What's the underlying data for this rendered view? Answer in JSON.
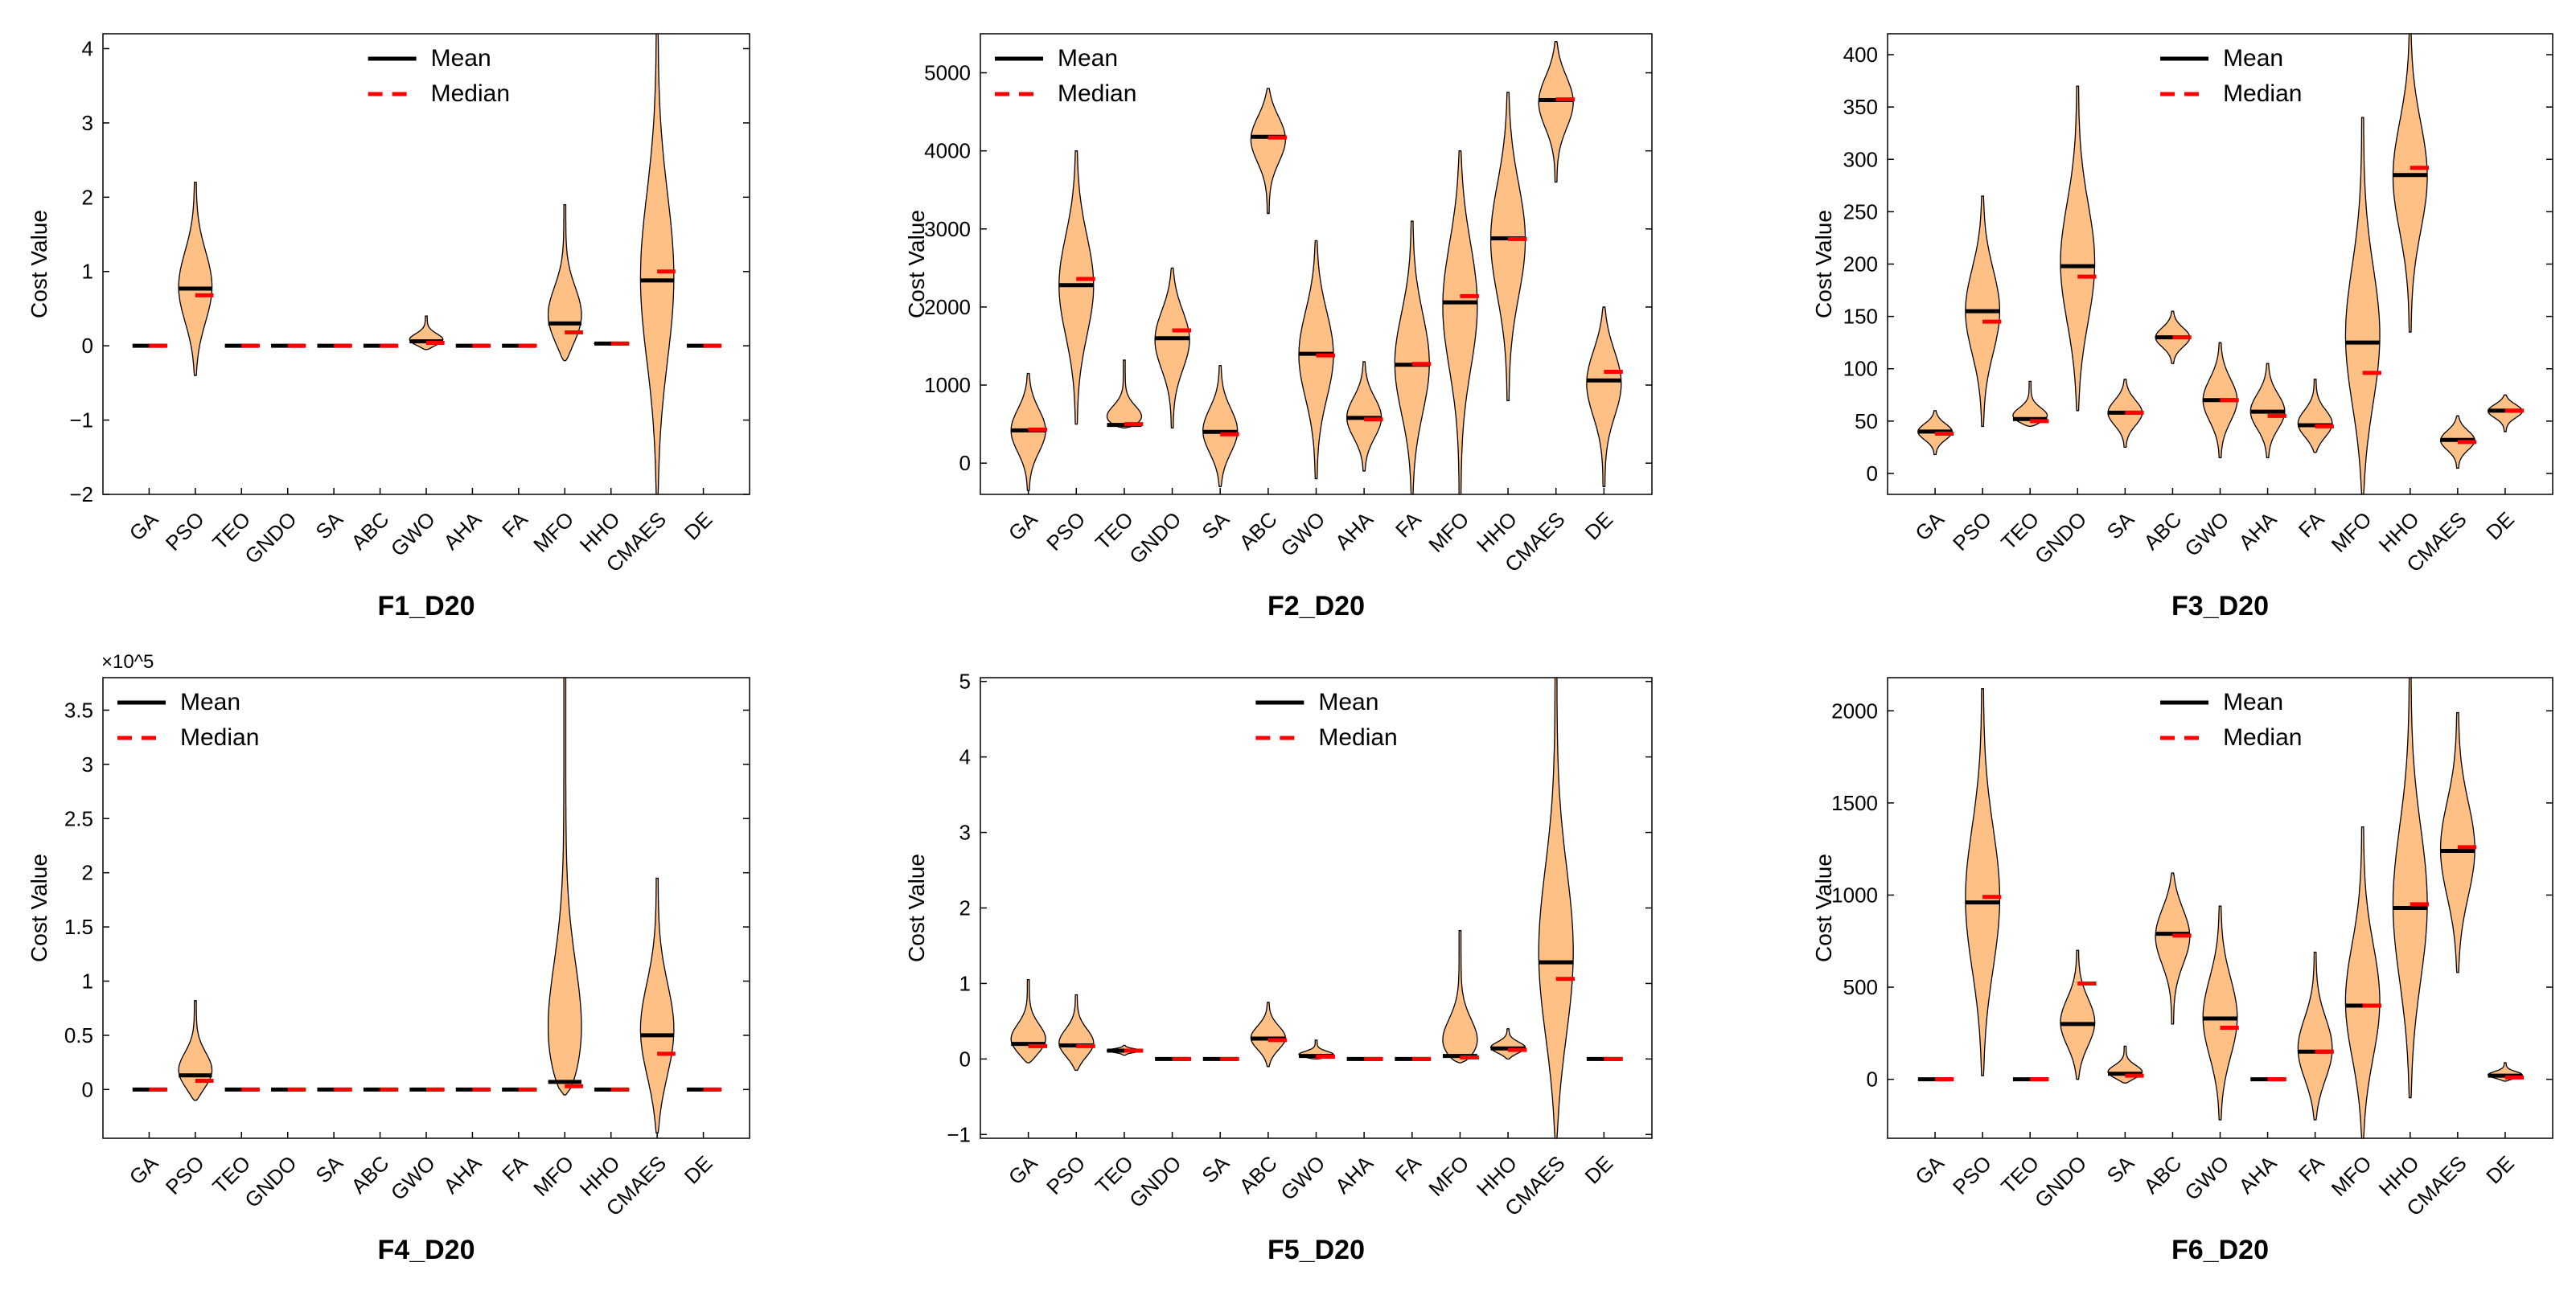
{
  "colors": {
    "violin_fill": "#FFC085",
    "violin_edge": "#000000",
    "mean": "#000000",
    "median": "#FF0000",
    "axes": "#000000"
  },
  "legend": {
    "mean_label": "Mean",
    "median_label": "Median"
  },
  "chart_data": [
    {
      "type": "violin",
      "title": "F1_D20",
      "ylabel": "Cost Value",
      "exponent_label": "",
      "ylim": [
        -2,
        4.2
      ],
      "yticks": [
        -2,
        -1,
        0,
        1,
        2,
        3,
        4
      ],
      "ytick_labels": [
        "−2",
        "−1",
        "0",
        "1",
        "2",
        "3",
        "4"
      ],
      "legend_position": "top-center",
      "categories": [
        "GA",
        "PSO",
        "TEO",
        "GNDO",
        "SA",
        "ABC",
        "GWO",
        "AHA",
        "FA",
        "MFO",
        "HHO",
        "CMAES",
        "DE"
      ],
      "series": [
        {
          "name": "GA",
          "min": 0,
          "max": 0,
          "mean": 0,
          "median": 0
        },
        {
          "name": "PSO",
          "min": -0.4,
          "max": 2.2,
          "mean": 0.77,
          "median": 0.68
        },
        {
          "name": "TEO",
          "min": 0,
          "max": 0,
          "mean": 0,
          "median": 0
        },
        {
          "name": "GNDO",
          "min": 0,
          "max": 0,
          "mean": 0,
          "median": 0
        },
        {
          "name": "SA",
          "min": 0,
          "max": 0,
          "mean": 0,
          "median": 0
        },
        {
          "name": "ABC",
          "min": 0,
          "max": 0,
          "mean": 0,
          "median": 0
        },
        {
          "name": "GWO",
          "min": -0.05,
          "max": 0.4,
          "mean": 0.06,
          "median": 0.04
        },
        {
          "name": "AHA",
          "min": 0,
          "max": 0,
          "mean": 0,
          "median": 0
        },
        {
          "name": "FA",
          "min": 0,
          "max": 0,
          "mean": 0,
          "median": 0
        },
        {
          "name": "MFO",
          "min": -0.2,
          "max": 1.9,
          "mean": 0.3,
          "median": 0.18
        },
        {
          "name": "HHO",
          "min": 0.01,
          "max": 0.05,
          "mean": 0.03,
          "median": 0.03
        },
        {
          "name": "CMAES",
          "min": -2,
          "max": 4.2,
          "mean": 0.88,
          "median": 1.0
        },
        {
          "name": "DE",
          "min": 0,
          "max": 0,
          "mean": 0,
          "median": 0
        }
      ]
    },
    {
      "type": "violin",
      "title": "F2_D20",
      "ylabel": "Cost Value",
      "exponent_label": "",
      "ylim": [
        -400,
        5500
      ],
      "yticks": [
        0,
        1000,
        2000,
        3000,
        4000,
        5000
      ],
      "ytick_labels": [
        "0",
        "1000",
        "2000",
        "3000",
        "4000",
        "5000"
      ],
      "legend_position": "top-left",
      "categories": [
        "GA",
        "PSO",
        "TEO",
        "GNDO",
        "SA",
        "ABC",
        "GWO",
        "AHA",
        "FA",
        "MFO",
        "HHO",
        "CMAES",
        "DE"
      ],
      "series": [
        {
          "name": "GA",
          "min": -350,
          "max": 1150,
          "mean": 420,
          "median": 430
        },
        {
          "name": "PSO",
          "min": 500,
          "max": 4000,
          "mean": 2280,
          "median": 2360
        },
        {
          "name": "TEO",
          "min": 450,
          "max": 1320,
          "mean": 490,
          "median": 500
        },
        {
          "name": "GNDO",
          "min": 450,
          "max": 2500,
          "mean": 1600,
          "median": 1700
        },
        {
          "name": "SA",
          "min": -300,
          "max": 1250,
          "mean": 400,
          "median": 370
        },
        {
          "name": "ABC",
          "min": 3200,
          "max": 4800,
          "mean": 4180,
          "median": 4170
        },
        {
          "name": "GWO",
          "min": -200,
          "max": 2850,
          "mean": 1400,
          "median": 1380
        },
        {
          "name": "AHA",
          "min": -100,
          "max": 1300,
          "mean": 580,
          "median": 560
        },
        {
          "name": "FA",
          "min": -400,
          "max": 3100,
          "mean": 1260,
          "median": 1270
        },
        {
          "name": "MFO",
          "min": -400,
          "max": 4000,
          "mean": 2060,
          "median": 2140
        },
        {
          "name": "HHO",
          "min": 800,
          "max": 4750,
          "mean": 2880,
          "median": 2870
        },
        {
          "name": "CMAES",
          "min": 3600,
          "max": 5400,
          "mean": 4650,
          "median": 4660
        },
        {
          "name": "DE",
          "min": -300,
          "max": 2000,
          "mean": 1060,
          "median": 1170
        }
      ]
    },
    {
      "type": "violin",
      "title": "F3_D20",
      "ylabel": "Cost Value",
      "exponent_label": "",
      "ylim": [
        -20,
        420
      ],
      "yticks": [
        0,
        50,
        100,
        150,
        200,
        250,
        300,
        350,
        400
      ],
      "ytick_labels": [
        "0",
        "50",
        "100",
        "150",
        "200",
        "250",
        "300",
        "350",
        "400"
      ],
      "legend_position": "top-center",
      "categories": [
        "GA",
        "PSO",
        "TEO",
        "GNDO",
        "SA",
        "ABC",
        "GWO",
        "AHA",
        "FA",
        "MFO",
        "HHO",
        "CMAES",
        "DE"
      ],
      "series": [
        {
          "name": "GA",
          "min": 18,
          "max": 60,
          "mean": 40,
          "median": 38
        },
        {
          "name": "PSO",
          "min": 45,
          "max": 265,
          "mean": 155,
          "median": 145
        },
        {
          "name": "TEO",
          "min": 45,
          "max": 88,
          "mean": 52,
          "median": 50
        },
        {
          "name": "GNDO",
          "min": 60,
          "max": 370,
          "mean": 198,
          "median": 188
        },
        {
          "name": "SA",
          "min": 25,
          "max": 90,
          "mean": 58,
          "median": 58
        },
        {
          "name": "ABC",
          "min": 105,
          "max": 155,
          "mean": 130,
          "median": 130
        },
        {
          "name": "GWO",
          "min": 15,
          "max": 125,
          "mean": 70,
          "median": 70
        },
        {
          "name": "AHA",
          "min": 15,
          "max": 105,
          "mean": 59,
          "median": 55
        },
        {
          "name": "FA",
          "min": 20,
          "max": 90,
          "mean": 46,
          "median": 45
        },
        {
          "name": "MFO",
          "min": -20,
          "max": 340,
          "mean": 125,
          "median": 96
        },
        {
          "name": "HHO",
          "min": 135,
          "max": 420,
          "mean": 285,
          "median": 292
        },
        {
          "name": "CMAES",
          "min": 5,
          "max": 55,
          "mean": 32,
          "median": 30
        },
        {
          "name": "DE",
          "min": 40,
          "max": 75,
          "mean": 60,
          "median": 60
        }
      ]
    },
    {
      "type": "violin",
      "title": "F4_D20",
      "ylabel": "Cost Value",
      "exponent_label": "×10^5",
      "ylim": [
        -0.45,
        3.8
      ],
      "yticks": [
        0,
        0.5,
        1,
        1.5,
        2,
        2.5,
        3,
        3.5
      ],
      "ytick_labels": [
        "0",
        "0.5",
        "1",
        "1.5",
        "2",
        "2.5",
        "3",
        "3.5"
      ],
      "legend_position": "top-left",
      "categories": [
        "GA",
        "PSO",
        "TEO",
        "GNDO",
        "SA",
        "ABC",
        "GWO",
        "AHA",
        "FA",
        "MFO",
        "HHO",
        "CMAES",
        "DE"
      ],
      "series": [
        {
          "name": "GA",
          "min": 0,
          "max": 0,
          "mean": 0,
          "median": 0
        },
        {
          "name": "PSO",
          "min": -0.1,
          "max": 0.82,
          "mean": 0.13,
          "median": 0.08
        },
        {
          "name": "TEO",
          "min": 0,
          "max": 0,
          "mean": 0,
          "median": 0
        },
        {
          "name": "GNDO",
          "min": 0,
          "max": 0,
          "mean": 0,
          "median": 0
        },
        {
          "name": "SA",
          "min": 0,
          "max": 0,
          "mean": 0,
          "median": 0
        },
        {
          "name": "ABC",
          "min": 0,
          "max": 0,
          "mean": 0,
          "median": 0
        },
        {
          "name": "GWO",
          "min": 0,
          "max": 0,
          "mean": 0,
          "median": 0
        },
        {
          "name": "AHA",
          "min": 0,
          "max": 0,
          "mean": 0,
          "median": 0
        },
        {
          "name": "FA",
          "min": 0,
          "max": 0,
          "mean": 0,
          "median": 0
        },
        {
          "name": "MFO",
          "min": -0.05,
          "max": 3.8,
          "mean": 0.07,
          "median": 0.03
        },
        {
          "name": "HHO",
          "min": 0,
          "max": 0,
          "mean": 0,
          "median": 0
        },
        {
          "name": "CMAES",
          "min": -0.4,
          "max": 1.95,
          "mean": 0.5,
          "median": 0.33
        },
        {
          "name": "DE",
          "min": 0,
          "max": 0,
          "mean": 0,
          "median": 0
        }
      ]
    },
    {
      "type": "violin",
      "title": "F5_D20",
      "ylabel": "Cost Value",
      "exponent_label": "",
      "ylim": [
        -1.05,
        5.05
      ],
      "yticks": [
        -1,
        0,
        1,
        2,
        3,
        4,
        5
      ],
      "ytick_labels": [
        "−1",
        "0",
        "1",
        "2",
        "3",
        "4",
        "5"
      ],
      "legend_position": "top-center",
      "categories": [
        "GA",
        "PSO",
        "TEO",
        "GNDO",
        "SA",
        "ABC",
        "GWO",
        "AHA",
        "FA",
        "MFO",
        "HHO",
        "CMAES",
        "DE"
      ],
      "series": [
        {
          "name": "GA",
          "min": -0.05,
          "max": 1.05,
          "mean": 0.2,
          "median": 0.17
        },
        {
          "name": "PSO",
          "min": -0.15,
          "max": 0.85,
          "mean": 0.18,
          "median": 0.17
        },
        {
          "name": "TEO",
          "min": 0.05,
          "max": 0.18,
          "mean": 0.11,
          "median": 0.11
        },
        {
          "name": "GNDO",
          "min": 0,
          "max": 0,
          "mean": 0,
          "median": 0
        },
        {
          "name": "SA",
          "min": 0,
          "max": 0,
          "mean": 0,
          "median": 0
        },
        {
          "name": "ABC",
          "min": -0.1,
          "max": 0.75,
          "mean": 0.27,
          "median": 0.25
        },
        {
          "name": "GWO",
          "min": 0,
          "max": 0.25,
          "mean": 0.04,
          "median": 0.03
        },
        {
          "name": "AHA",
          "min": 0,
          "max": 0,
          "mean": 0,
          "median": 0
        },
        {
          "name": "FA",
          "min": 0,
          "max": 0,
          "mean": 0,
          "median": 0
        },
        {
          "name": "MFO",
          "min": -0.05,
          "max": 1.7,
          "mean": 0.04,
          "median": 0.02
        },
        {
          "name": "HHO",
          "min": 0,
          "max": 0.4,
          "mean": 0.14,
          "median": 0.12
        },
        {
          "name": "CMAES",
          "min": -1.05,
          "max": 5.05,
          "mean": 1.28,
          "median": 1.06
        },
        {
          "name": "DE",
          "min": 0,
          "max": 0,
          "mean": 0,
          "median": 0
        }
      ]
    },
    {
      "type": "violin",
      "title": "F6_D20",
      "ylabel": "Cost Value",
      "exponent_label": "",
      "ylim": [
        -320,
        2180
      ],
      "yticks": [
        0,
        500,
        1000,
        1500,
        2000
      ],
      "ytick_labels": [
        "0",
        "500",
        "1000",
        "1500",
        "2000"
      ],
      "legend_position": "top-center",
      "categories": [
        "GA",
        "PSO",
        "TEO",
        "GNDO",
        "SA",
        "ABC",
        "GWO",
        "AHA",
        "FA",
        "MFO",
        "HHO",
        "CMAES",
        "DE"
      ],
      "series": [
        {
          "name": "GA",
          "min": 0,
          "max": 0,
          "mean": 0,
          "median": 0
        },
        {
          "name": "PSO",
          "min": 20,
          "max": 2120,
          "mean": 960,
          "median": 990
        },
        {
          "name": "TEO",
          "min": 0,
          "max": 0,
          "mean": 0,
          "median": 0
        },
        {
          "name": "GNDO",
          "min": 0,
          "max": 700,
          "mean": 300,
          "median": 520
        },
        {
          "name": "SA",
          "min": -20,
          "max": 180,
          "mean": 30,
          "median": 20
        },
        {
          "name": "ABC",
          "min": 300,
          "max": 1120,
          "mean": 790,
          "median": 780
        },
        {
          "name": "GWO",
          "min": -220,
          "max": 940,
          "mean": 330,
          "median": 280
        },
        {
          "name": "AHA",
          "min": 0,
          "max": 0,
          "mean": 0,
          "median": 0
        },
        {
          "name": "FA",
          "min": -220,
          "max": 690,
          "mean": 150,
          "median": 150
        },
        {
          "name": "MFO",
          "min": -320,
          "max": 1370,
          "mean": 400,
          "median": 400
        },
        {
          "name": "HHO",
          "min": -100,
          "max": 2180,
          "mean": 930,
          "median": 950
        },
        {
          "name": "CMAES",
          "min": 580,
          "max": 1990,
          "mean": 1240,
          "median": 1260
        },
        {
          "name": "DE",
          "min": -10,
          "max": 90,
          "mean": 20,
          "median": 10
        }
      ]
    }
  ]
}
